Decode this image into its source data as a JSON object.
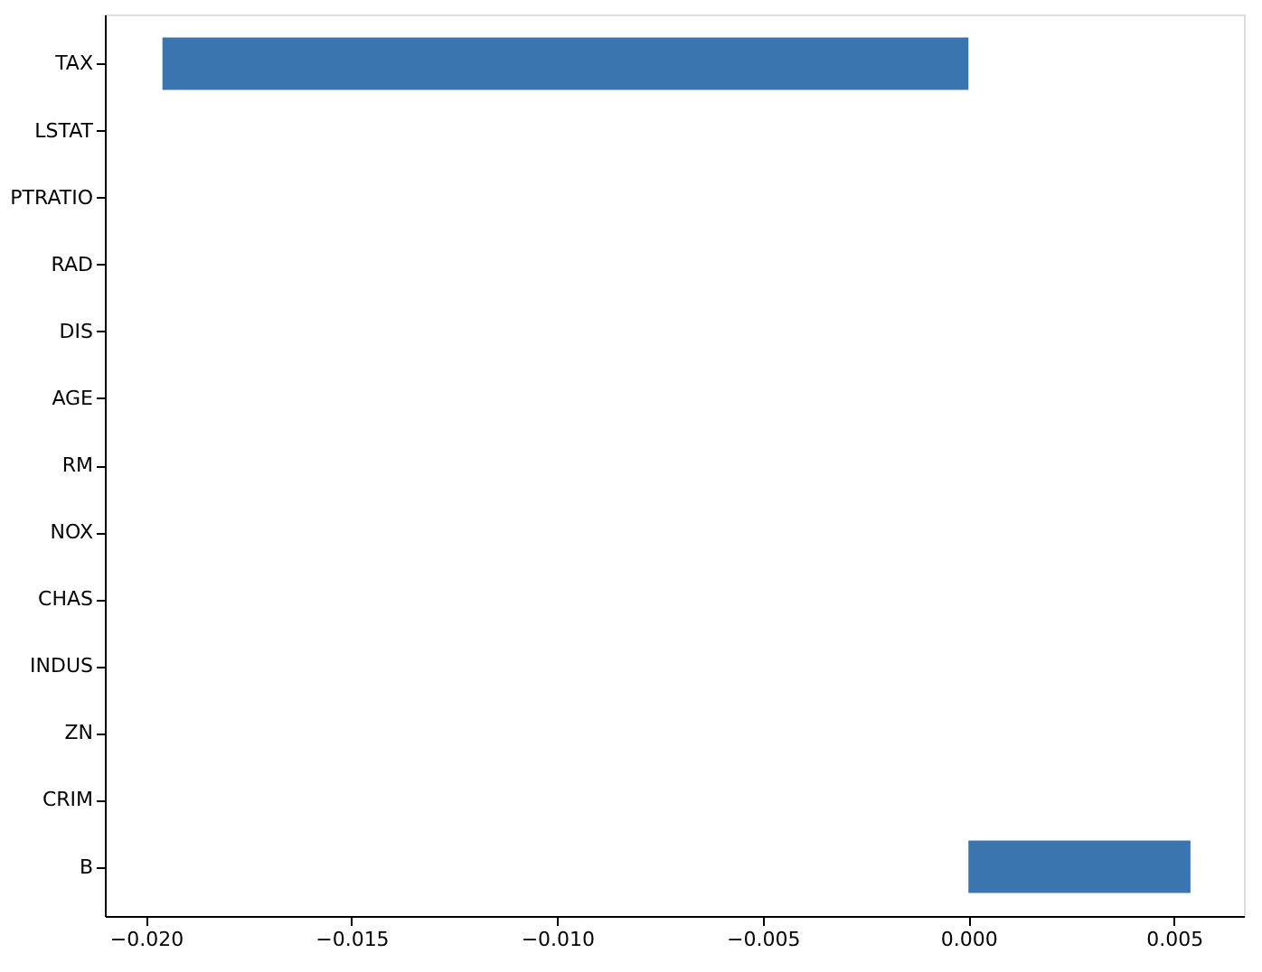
{
  "chart_data": {
    "type": "bar",
    "orientation": "horizontal",
    "categories": [
      "TAX",
      "LSTAT",
      "PTRATIO",
      "RAD",
      "DIS",
      "AGE",
      "RM",
      "NOX",
      "CHAS",
      "INDUS",
      "ZN",
      "CRIM",
      "B"
    ],
    "values": [
      -0.0196,
      0,
      0,
      0,
      0,
      0,
      0,
      0,
      0,
      0,
      0,
      0,
      0.0054
    ],
    "color": "#3a75b0",
    "xlim": [
      -0.021,
      0.0067
    ],
    "xticks": [
      {
        "value": -0.02,
        "label": "−0.020"
      },
      {
        "value": -0.015,
        "label": "−0.015"
      },
      {
        "value": -0.01,
        "label": "−0.010"
      },
      {
        "value": -0.005,
        "label": "−0.005"
      },
      {
        "value": 0,
        "label": "0.000"
      },
      {
        "value": 0.005,
        "label": "0.005"
      }
    ],
    "grid": false
  }
}
